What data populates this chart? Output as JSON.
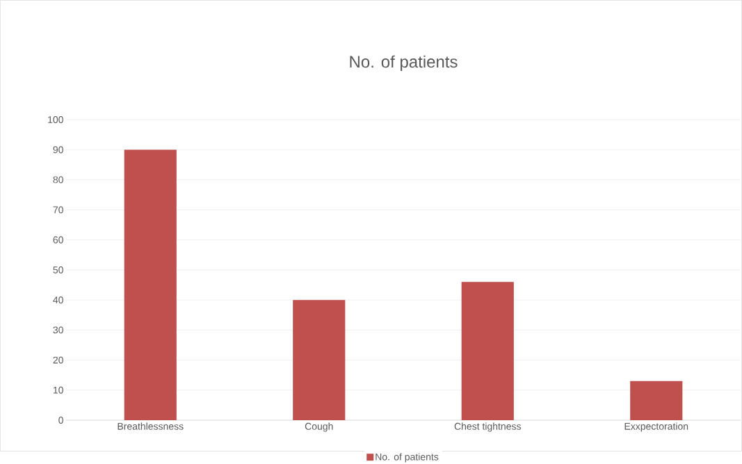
{
  "chart_data": {
    "type": "bar",
    "title": "No. of patients",
    "categories": [
      "Breathlessness",
      "Cough",
      "Chest tightness",
      "Exxpectoration"
    ],
    "series": [
      {
        "name": "No. of patients",
        "color": "#c0504d",
        "values": [
          90,
          40,
          46,
          13
        ]
      }
    ],
    "ylim": [
      0,
      100
    ],
    "yticks": [
      0,
      10,
      20,
      30,
      40,
      50,
      60,
      70,
      80,
      90,
      100
    ],
    "grid": "y",
    "legend": "bottom"
  }
}
